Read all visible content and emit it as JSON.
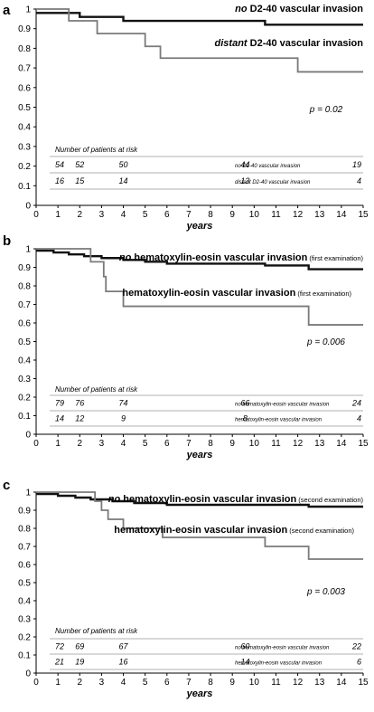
{
  "chart_data": [
    {
      "type": "line",
      "step": true,
      "panel_label": "a",
      "xlabel": "years",
      "xlim": [
        0,
        15
      ],
      "ylim": [
        0,
        1
      ],
      "x_ticks": [
        "0",
        "1",
        "2",
        "3",
        "4",
        "5",
        "6",
        "7",
        "8",
        "9",
        "10",
        "11",
        "12",
        "13",
        "14",
        "15"
      ],
      "y_ticks": [
        "0",
        "0.1",
        "0.2",
        "0.3",
        "0.4",
        "0.5",
        "0.6",
        "0.7",
        "0.8",
        "0.9",
        "1"
      ],
      "p_value": "p = 0.02",
      "risk_title": "Number of patients at risk",
      "series": [
        {
          "name_prefix": "no",
          "name_rest": " D2-40 vascular invasion",
          "name_suffix": "",
          "risk_label": "no D2-40 vascular invasion",
          "color": "#111111",
          "x": [
            0,
            2.0,
            4.0,
            10.5,
            15
          ],
          "y": [
            0.98,
            0.96,
            0.94,
            0.92,
            0.92
          ],
          "at_risk": [
            {
              "x": 0,
              "n": "54"
            },
            {
              "x": 2,
              "n": "52"
            },
            {
              "x": 4,
              "n": "50"
            },
            {
              "x": 10,
              "n": "44"
            },
            {
              "x": 15,
              "n": "19"
            }
          ]
        },
        {
          "name_prefix": "distant",
          "name_rest": " D2-40 vascular invasion",
          "name_suffix": "",
          "risk_label": "distant D2-40 vascular invasion",
          "color": "#7a7a7a",
          "x": [
            0,
            1.5,
            2.8,
            5.0,
            5.7,
            12.0,
            15
          ],
          "y": [
            1.0,
            0.94,
            0.875,
            0.81,
            0.75,
            0.68,
            0.68
          ],
          "at_risk": [
            {
              "x": 0,
              "n": "16"
            },
            {
              "x": 2,
              "n": "15"
            },
            {
              "x": 4,
              "n": "14"
            },
            {
              "x": 10,
              "n": "13"
            },
            {
              "x": 15,
              "n": "4"
            }
          ]
        }
      ]
    },
    {
      "type": "line",
      "step": true,
      "panel_label": "b",
      "xlabel": "years",
      "xlim": [
        0,
        15
      ],
      "ylim": [
        0,
        1
      ],
      "x_ticks": [
        "0",
        "1",
        "2",
        "3",
        "4",
        "5",
        "6",
        "7",
        "8",
        "9",
        "10",
        "11",
        "12",
        "13",
        "14",
        "15"
      ],
      "y_ticks": [
        "0",
        "0.1",
        "0.2",
        "0.3",
        "0.4",
        "0.5",
        "0.6",
        "0.7",
        "0.8",
        "0.9",
        "1"
      ],
      "p_value": "p = 0.006",
      "risk_title": "Number of patients at risk",
      "series": [
        {
          "name_prefix": "no",
          "name_rest": " hematoxylin-eosin vascular invasion",
          "name_suffix": " (first examination)",
          "risk_label": "no hematoxylin-eosin vascular invasion",
          "color": "#111111",
          "x": [
            0,
            0.8,
            1.5,
            2.2,
            3.0,
            4.0,
            5.0,
            6.0,
            10.5,
            12.5,
            15
          ],
          "y": [
            0.99,
            0.98,
            0.97,
            0.96,
            0.95,
            0.94,
            0.93,
            0.92,
            0.91,
            0.89,
            0.89
          ],
          "at_risk": [
            {
              "x": 0,
              "n": "79"
            },
            {
              "x": 2,
              "n": "76"
            },
            {
              "x": 4,
              "n": "74"
            },
            {
              "x": 10,
              "n": "66"
            },
            {
              "x": 15,
              "n": "24"
            }
          ]
        },
        {
          "name_prefix": "",
          "name_rest": "hematoxylin-eosin vascular invasion",
          "name_suffix": " (first examination)",
          "risk_label": "hematoxylin-eosin vascular invasion",
          "color": "#7a7a7a",
          "x": [
            0,
            2.5,
            3.1,
            3.2,
            4.0,
            12.5,
            15
          ],
          "y": [
            1.0,
            0.93,
            0.85,
            0.77,
            0.69,
            0.59,
            0.59
          ],
          "at_risk": [
            {
              "x": 0,
              "n": "14"
            },
            {
              "x": 2,
              "n": "12"
            },
            {
              "x": 4,
              "n": "9"
            },
            {
              "x": 10,
              "n": "8"
            },
            {
              "x": 15,
              "n": "4"
            }
          ]
        }
      ]
    },
    {
      "type": "line",
      "step": true,
      "panel_label": "c",
      "xlabel": "years",
      "xlim": [
        0,
        15
      ],
      "ylim": [
        0,
        1
      ],
      "x_ticks": [
        "0",
        "1",
        "2",
        "3",
        "4",
        "5",
        "6",
        "7",
        "8",
        "9",
        "10",
        "11",
        "12",
        "13",
        "14",
        "15"
      ],
      "y_ticks": [
        "0",
        "0.1",
        "0.2",
        "0.3",
        "0.4",
        "0.5",
        "0.6",
        "0.7",
        "0.8",
        "0.9",
        "1"
      ],
      "p_value": "p = 0.003",
      "risk_title": "Number of patients at risk",
      "series": [
        {
          "name_prefix": "no",
          "name_rest": " hematoxylin-eosin vascular invasion",
          "name_suffix": " (second examination)",
          "risk_label": "no hematoxylin-eosin vascular invasion",
          "color": "#111111",
          "x": [
            0,
            1.0,
            1.8,
            2.5,
            3.5,
            4.5,
            6.0,
            12.5,
            15
          ],
          "y": [
            0.99,
            0.98,
            0.97,
            0.96,
            0.95,
            0.94,
            0.93,
            0.92,
            0.92
          ],
          "at_risk": [
            {
              "x": 0,
              "n": "72"
            },
            {
              "x": 2,
              "n": "69"
            },
            {
              "x": 4,
              "n": "67"
            },
            {
              "x": 10,
              "n": "60"
            },
            {
              "x": 15,
              "n": "22"
            }
          ]
        },
        {
          "name_prefix": "",
          "name_rest": "hematoxylin-eosin vascular invasion",
          "name_suffix": " (second examination)",
          "risk_label": "hematoxylin-eosin vascular invasion",
          "color": "#7a7a7a",
          "x": [
            0,
            2.7,
            3.0,
            3.3,
            4.0,
            5.8,
            10.5,
            12.5,
            15
          ],
          "y": [
            1.0,
            0.95,
            0.9,
            0.85,
            0.8,
            0.75,
            0.7,
            0.63,
            0.63
          ],
          "at_risk": [
            {
              "x": 0,
              "n": "21"
            },
            {
              "x": 2,
              "n": "19"
            },
            {
              "x": 4,
              "n": "16"
            },
            {
              "x": 10,
              "n": "14"
            },
            {
              "x": 15,
              "n": "6"
            }
          ]
        }
      ]
    }
  ]
}
